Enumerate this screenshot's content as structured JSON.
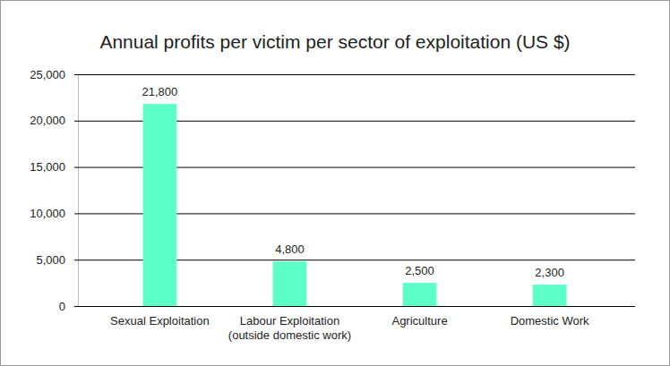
{
  "chart_data": {
    "type": "bar",
    "title": "Annual profits per victim per sector of exploitation (US $)",
    "categories": [
      "Sexual Exploitation",
      "Labour Exploitation\n(outside domestic work)",
      "Agriculture",
      "Domestic Work"
    ],
    "values": [
      21800,
      4800,
      2500,
      2300
    ],
    "value_labels": [
      "21,800",
      "4,800",
      "2,500",
      "2,300"
    ],
    "data_labels": true,
    "color": "#5cffc8",
    "ylim": [
      0,
      25000
    ],
    "yticks": [
      0,
      {
        "value": 5000,
        "label": "5,000"
      },
      {
        "value": 10000,
        "label": "10,000"
      },
      {
        "value": 15000,
        "label": "15,000"
      },
      {
        "value": 20000,
        "label": "20,000"
      },
      {
        "value": 25000,
        "label": "25,000"
      }
    ],
    "grid": true
  }
}
